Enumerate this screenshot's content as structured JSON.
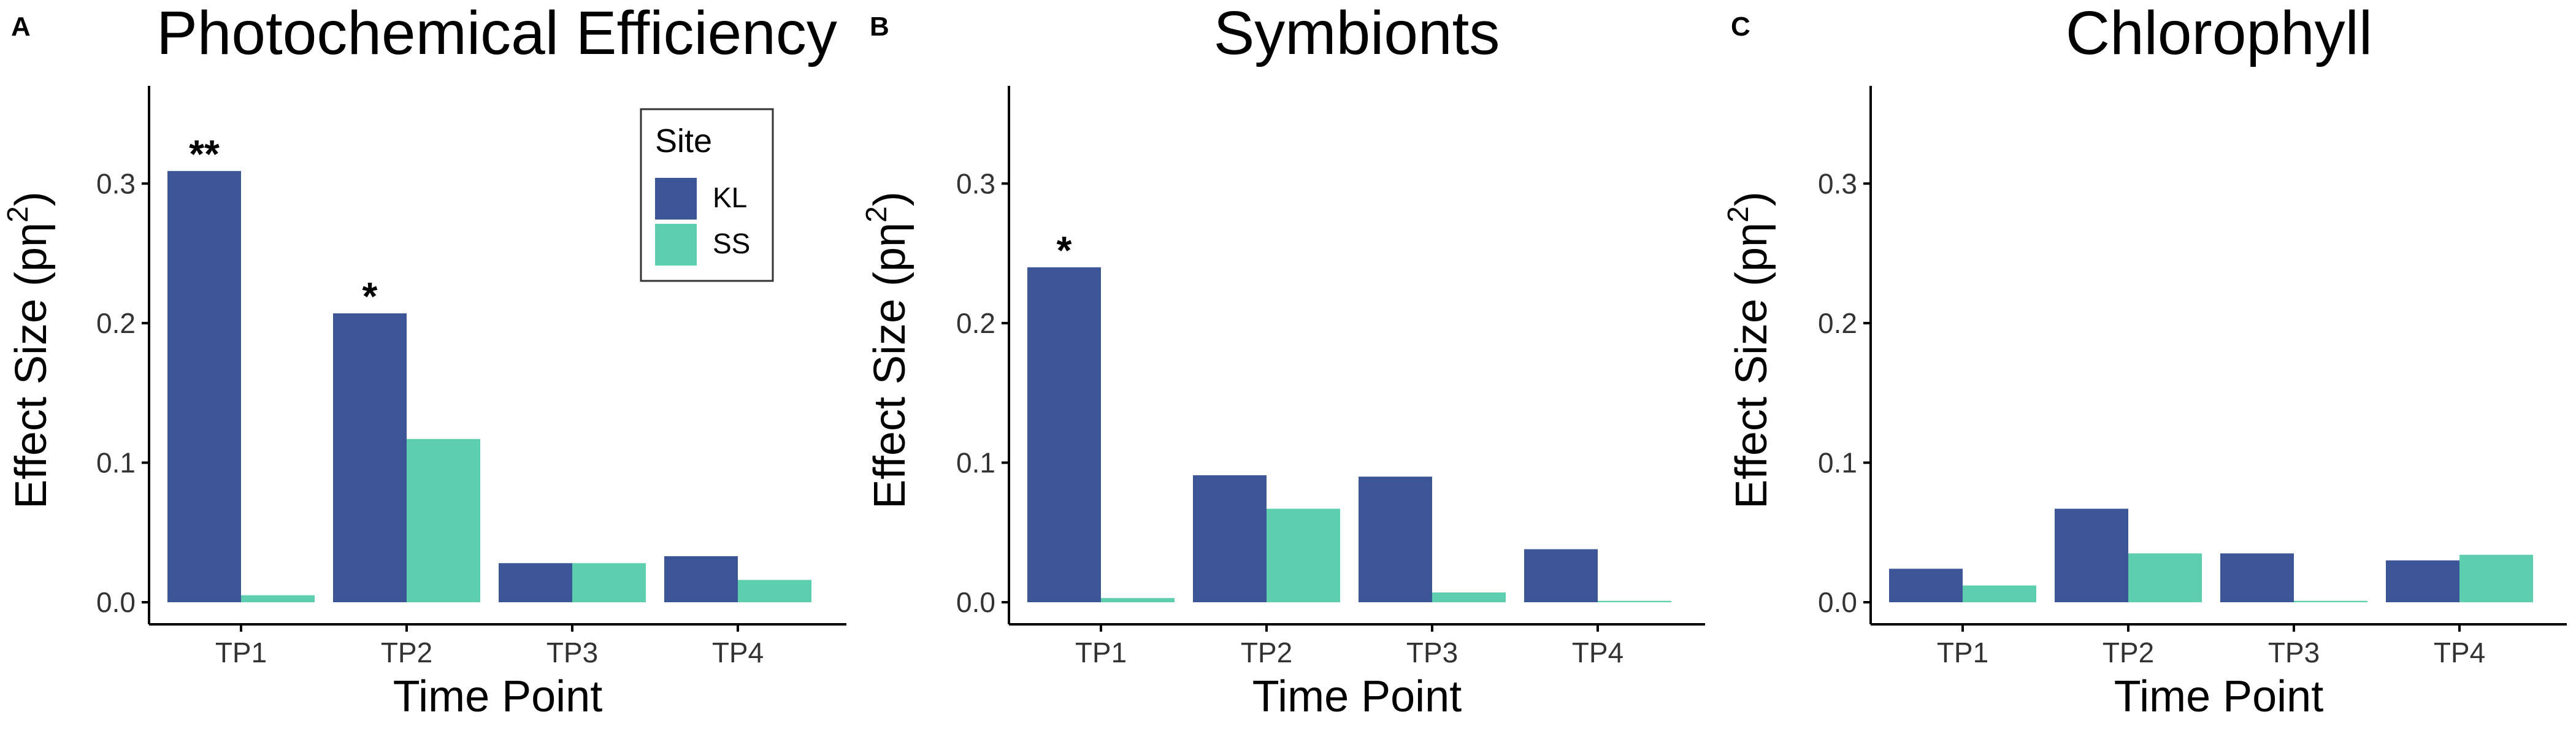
{
  "colors": {
    "KL": "#3b5597",
    "SS": "#5ecfae",
    "axis": "#000000",
    "text": "#000000"
  },
  "legend": {
    "title": "Site",
    "entries": [
      "KL",
      "SS"
    ]
  },
  "chart_data": [
    {
      "type": "bar",
      "panel": "A",
      "title": "Photochemical Efficiency",
      "xlabel": "Time Point",
      "ylabel_main": "Effect Size (pη",
      "ylabel_sup": "2",
      "ylabel_end": ")",
      "categories": [
        "TP1",
        "TP2",
        "TP3",
        "TP4"
      ],
      "series": [
        {
          "name": "KL",
          "values": [
            0.309,
            0.207,
            0.028,
            0.033
          ]
        },
        {
          "name": "SS",
          "values": [
            0.005,
            0.117,
            0.028,
            0.016
          ]
        }
      ],
      "annotations": [
        {
          "category": "TP1",
          "series": "KL",
          "text": "**"
        },
        {
          "category": "TP2",
          "series": "KL",
          "text": "*"
        }
      ],
      "yticks": [
        "0.0",
        "0.1",
        "0.2",
        "0.3"
      ],
      "ylim": [
        0,
        0.37
      ],
      "legend": true,
      "legend_position": "top-right",
      "grid": false
    },
    {
      "type": "bar",
      "panel": "B",
      "title": "Symbionts",
      "xlabel": "Time Point",
      "ylabel_main": "Effect Size (pη",
      "ylabel_sup": "2",
      "ylabel_end": ")",
      "categories": [
        "TP1",
        "TP2",
        "TP3",
        "TP4"
      ],
      "series": [
        {
          "name": "KL",
          "values": [
            0.24,
            0.091,
            0.09,
            0.038
          ]
        },
        {
          "name": "SS",
          "values": [
            0.003,
            0.067,
            0.007,
            0.001
          ]
        }
      ],
      "annotations": [
        {
          "category": "TP1",
          "series": "KL",
          "text": "*"
        }
      ],
      "yticks": [
        "0.0",
        "0.1",
        "0.2",
        "0.3"
      ],
      "ylim": [
        0,
        0.37
      ],
      "legend": false,
      "grid": false
    },
    {
      "type": "bar",
      "panel": "C",
      "title": "Chlorophyll",
      "xlabel": "Time Point",
      "ylabel_main": "Effect Size (pη",
      "ylabel_sup": "2",
      "ylabel_end": ")",
      "categories": [
        "TP1",
        "TP2",
        "TP3",
        "TP4"
      ],
      "series": [
        {
          "name": "KL",
          "values": [
            0.024,
            0.067,
            0.035,
            0.03
          ]
        },
        {
          "name": "SS",
          "values": [
            0.012,
            0.035,
            0.001,
            0.034
          ]
        }
      ],
      "annotations": [],
      "yticks": [
        "0.0",
        "0.1",
        "0.2",
        "0.3"
      ],
      "ylim": [
        0,
        0.37
      ],
      "legend": false,
      "grid": false
    }
  ]
}
